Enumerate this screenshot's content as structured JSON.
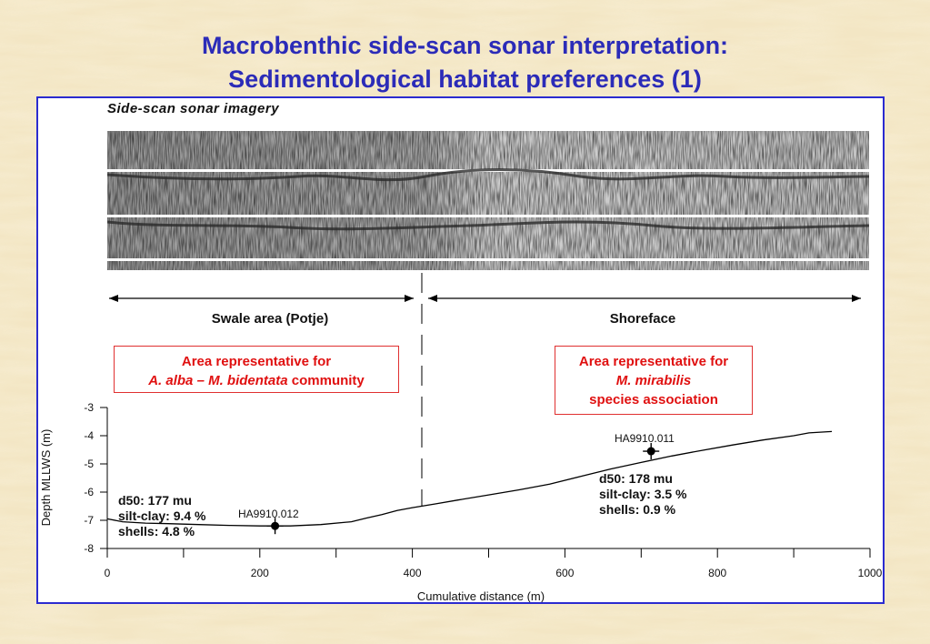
{
  "slide": {
    "title_line1": "Macrobenthic side-scan sonar interpretation:",
    "title_line2": "Sedimentological habitat preferences (1)"
  },
  "sonar": {
    "label": "Side-scan sonar imagery"
  },
  "regions": {
    "left_label": "Swale area (Potje)",
    "right_label": "Shoreface"
  },
  "callouts": {
    "left": {
      "line1": "Area representative for",
      "line2_italic": "A. alba – M. bidentata",
      "line2_rest": " community"
    },
    "right": {
      "line1": "Area representative for",
      "line2_italic": "M. mirabilis",
      "line3": "species association"
    }
  },
  "stations": {
    "left": {
      "id": "HA9910.012",
      "d50": "d50: 177 mu",
      "silt_clay": "silt-clay: 9.4 %",
      "shells": "shells: 4.8 %"
    },
    "right": {
      "id": "HA9910.011",
      "d50": "d50: 178 mu",
      "silt_clay": "silt-clay: 3.5 %",
      "shells": "shells: 0.9 %"
    }
  },
  "chart_data": {
    "type": "line",
    "xlabel": "Cumulative distance (m)",
    "ylabel": "Depth MLLWS (m)",
    "xlim": [
      0,
      1000
    ],
    "ylim": [
      -8,
      -3
    ],
    "xticks": [
      0,
      200,
      400,
      600,
      800,
      1000
    ],
    "yticks": [
      -3,
      -4,
      -5,
      -6,
      -7,
      -8
    ],
    "boundary_x": 410,
    "series": [
      {
        "x": [
          0,
          20,
          50,
          80,
          120,
          160,
          200,
          240,
          280,
          320,
          340,
          360,
          380,
          400,
          430,
          460,
          500,
          540,
          580,
          620,
          660,
          700,
          740,
          780,
          820,
          860,
          900,
          920,
          950
        ],
        "y": [
          -6.95,
          -7.05,
          -7.1,
          -7.12,
          -7.15,
          -7.18,
          -7.2,
          -7.2,
          -7.15,
          -7.05,
          -6.92,
          -6.8,
          -6.65,
          -6.55,
          -6.42,
          -6.28,
          -6.1,
          -5.92,
          -5.72,
          -5.45,
          -5.18,
          -4.95,
          -4.72,
          -4.52,
          -4.33,
          -4.15,
          -4.0,
          -3.9,
          -3.85
        ]
      }
    ],
    "stations": [
      {
        "name": "HA9910.012",
        "x": 220,
        "y": -7.2
      },
      {
        "name": "HA9910.011",
        "x": 713,
        "y": -4.55
      }
    ]
  },
  "colors": {
    "title": "#2b2bb8",
    "frame": "#2b2bd0",
    "callout": "#e01010",
    "background": "#ead9b0"
  }
}
